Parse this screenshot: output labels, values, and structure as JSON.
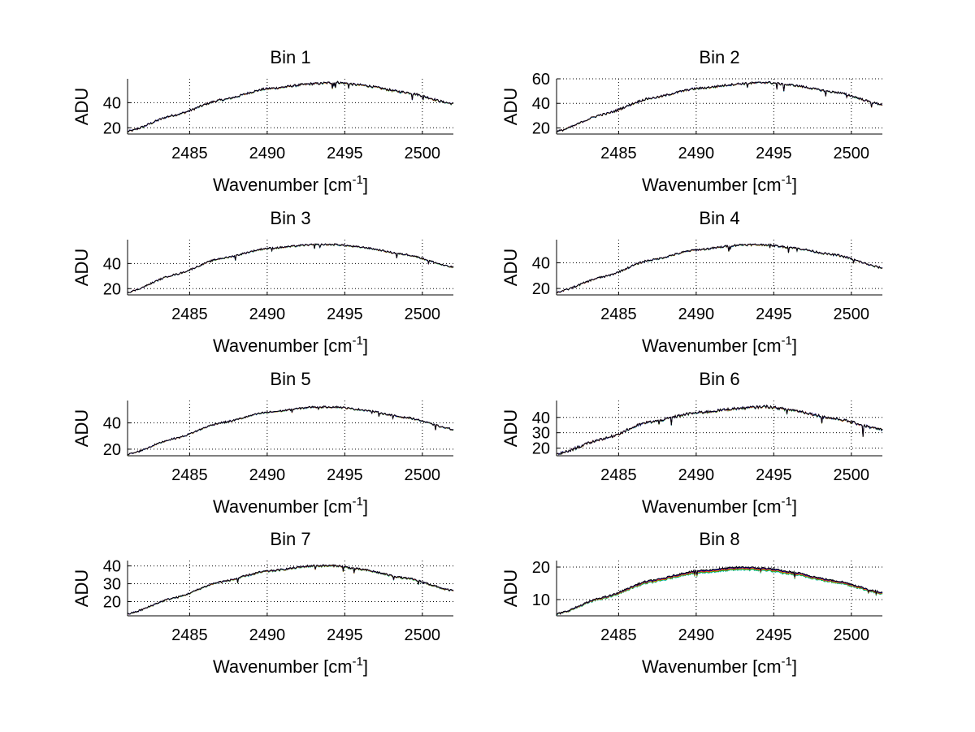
{
  "colors": {
    "background": "#ffffff",
    "axes": "#000000",
    "grid": "#000000",
    "series": [
      "#00bfbf",
      "#00a000",
      "#ff9900",
      "#e81c1c",
      "#0000c8",
      "#000000"
    ]
  },
  "chart_data": [
    {
      "type": "line",
      "title": "Bin 1",
      "xlabel": "Wavenumber",
      "xunit": "cm",
      "xunit_exp": "-1",
      "ylabel": "ADU",
      "xlim": [
        2481,
        2502
      ],
      "ylim": [
        15,
        59
      ],
      "xticks": [
        2485,
        2490,
        2495,
        2500
      ],
      "yticks": [
        20,
        40
      ],
      "profile": {
        "x": [
          2481,
          2484,
          2487,
          2490,
          2493,
          2494.5,
          2496,
          2499,
          2502
        ],
        "y": [
          17,
          30,
          42,
          51,
          55,
          56,
          54,
          48,
          39
        ]
      },
      "series_count": 6,
      "series_spread": 0.6,
      "noise": 1.6
    },
    {
      "type": "line",
      "title": "Bin 2",
      "xlabel": "Wavenumber",
      "xunit": "cm",
      "xunit_exp": "-1",
      "ylabel": "ADU",
      "xlim": [
        2481,
        2502
      ],
      "ylim": [
        15,
        60
      ],
      "xticks": [
        2485,
        2490,
        2495,
        2500
      ],
      "yticks": [
        20,
        40,
        60
      ],
      "profile": {
        "x": [
          2481,
          2484,
          2487,
          2490,
          2493,
          2494.5,
          2496,
          2499,
          2502
        ],
        "y": [
          17,
          31,
          44,
          52,
          56,
          57,
          55,
          49,
          39
        ]
      },
      "series_count": 6,
      "series_spread": 0.5,
      "noise": 1.6
    },
    {
      "type": "line",
      "title": "Bin 3",
      "xlabel": "Wavenumber",
      "xunit": "cm",
      "xunit_exp": "-1",
      "ylabel": "ADU",
      "xlim": [
        2481,
        2502
      ],
      "ylim": [
        15,
        59
      ],
      "xticks": [
        2485,
        2490,
        2495,
        2500
      ],
      "yticks": [
        20,
        40
      ],
      "profile": {
        "x": [
          2481,
          2484,
          2487,
          2490,
          2493,
          2494.5,
          2496,
          2499,
          2502
        ],
        "y": [
          17,
          31,
          44,
          52,
          55,
          55,
          53,
          47,
          37
        ]
      },
      "series_count": 6,
      "series_spread": 0.5,
      "noise": 1.2
    },
    {
      "type": "line",
      "title": "Bin 4",
      "xlabel": "Wavenumber",
      "xunit": "cm",
      "xunit_exp": "-1",
      "ylabel": "ADU",
      "xlim": [
        2481,
        2502
      ],
      "ylim": [
        15,
        58
      ],
      "xticks": [
        2485,
        2490,
        2495,
        2500
      ],
      "yticks": [
        20,
        40
      ],
      "profile": {
        "x": [
          2481,
          2484,
          2487,
          2490,
          2493,
          2494.5,
          2496,
          2499,
          2502
        ],
        "y": [
          17,
          29,
          42,
          50,
          54,
          54,
          52,
          46,
          36
        ]
      },
      "series_count": 6,
      "series_spread": 0.5,
      "noise": 1.4
    },
    {
      "type": "line",
      "title": "Bin 5",
      "xlabel": "Wavenumber",
      "xunit": "cm",
      "xunit_exp": "-1",
      "ylabel": "ADU",
      "xlim": [
        2481,
        2502
      ],
      "ylim": [
        15,
        57
      ],
      "xticks": [
        2485,
        2490,
        2495,
        2500
      ],
      "yticks": [
        20,
        40
      ],
      "profile": {
        "x": [
          2481,
          2484,
          2487,
          2490,
          2493,
          2494.5,
          2496,
          2499,
          2502
        ],
        "y": [
          16,
          28,
          40,
          48,
          52,
          52,
          50,
          44,
          35
        ]
      },
      "series_count": 6,
      "series_spread": 0.5,
      "noise": 1.2
    },
    {
      "type": "line",
      "title": "Bin 6",
      "xlabel": "Wavenumber",
      "xunit": "cm",
      "xunit_exp": "-1",
      "ylabel": "ADU",
      "xlim": [
        2481,
        2502
      ],
      "ylim": [
        15,
        51
      ],
      "xticks": [
        2485,
        2490,
        2495,
        2500
      ],
      "yticks": [
        20,
        30,
        40
      ],
      "profile": {
        "x": [
          2481,
          2484,
          2487,
          2490,
          2493,
          2494.5,
          2496,
          2499,
          2502
        ],
        "y": [
          16,
          26,
          37,
          43,
          46,
          47,
          45,
          39,
          32
        ]
      },
      "series_count": 6,
      "series_spread": 0.5,
      "noise": 1.6
    },
    {
      "type": "line",
      "title": "Bin 7",
      "xlabel": "Wavenumber",
      "xunit": "cm",
      "xunit_exp": "-1",
      "ylabel": "ADU",
      "xlim": [
        2481,
        2502
      ],
      "ylim": [
        12,
        43
      ],
      "xticks": [
        2485,
        2490,
        2495,
        2500
      ],
      "yticks": [
        20,
        30,
        40
      ],
      "profile": {
        "x": [
          2481,
          2484,
          2487,
          2490,
          2493,
          2494.5,
          2496,
          2499,
          2502
        ],
        "y": [
          13,
          22,
          31,
          37,
          40,
          40,
          38,
          33,
          26
        ]
      },
      "series_count": 6,
      "series_spread": 0.6,
      "noise": 0.9
    },
    {
      "type": "line",
      "title": "Bin 8",
      "xlabel": "Wavenumber",
      "xunit": "cm",
      "xunit_exp": "-1",
      "ylabel": "ADU",
      "xlim": [
        2481,
        2502
      ],
      "ylim": [
        5,
        22
      ],
      "xticks": [
        2485,
        2490,
        2495,
        2500
      ],
      "yticks": [
        10,
        20
      ],
      "profile": {
        "x": [
          2481,
          2484,
          2487,
          2490,
          2493,
          2494.5,
          2496,
          2499,
          2502
        ],
        "y": [
          5.5,
          10.5,
          15.5,
          18.5,
          19.6,
          19.3,
          18.2,
          15.5,
          12
        ]
      },
      "series_count": 6,
      "series_spread": 1.0,
      "noise": 0.5
    }
  ]
}
